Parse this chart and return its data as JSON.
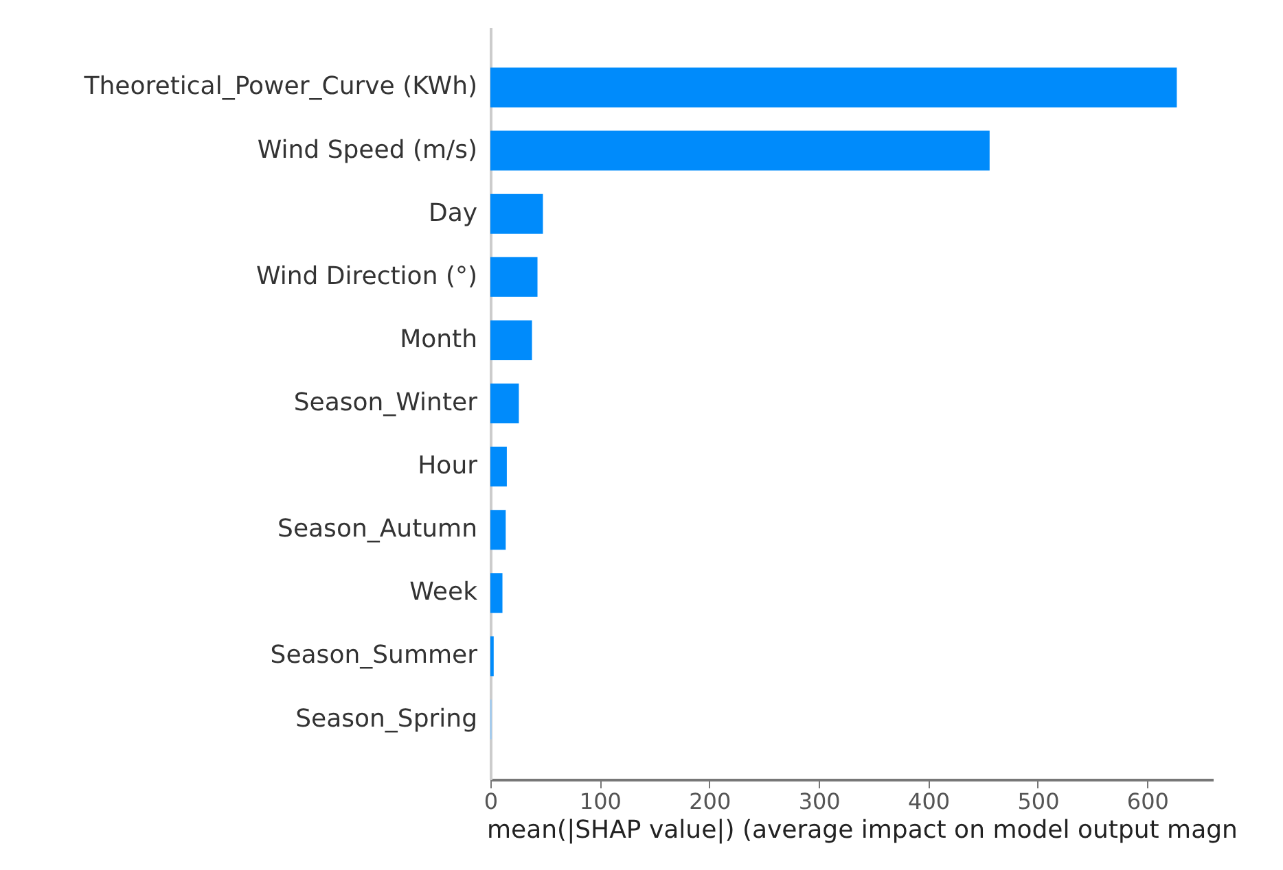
{
  "chart_data": {
    "type": "bar",
    "orientation": "horizontal",
    "xlabel": "mean(|SHAP value|) (average impact on model output magn",
    "categories": [
      "Theoretical_Power_Curve (KWh)",
      "Wind Speed (m/s)",
      "Day",
      "Wind Direction (°)",
      "Month",
      "Season_Winter",
      "Hour",
      "Season_Autumn",
      "Week",
      "Season_Summer",
      "Season_Spring"
    ],
    "values": [
      627,
      456,
      48,
      43,
      38,
      26,
      15,
      14,
      11,
      3,
      1
    ],
    "colors": [
      "#008bfb",
      "#008bfb",
      "#008bfb",
      "#008bfb",
      "#008bfb",
      "#008bfb",
      "#008bfb",
      "#008bfb",
      "#008bfb",
      "#008bfb",
      "#8fcbff"
    ],
    "xlim": [
      0,
      660
    ],
    "xticks": [
      0,
      100,
      200,
      300,
      400,
      500,
      600
    ],
    "grid": false
  }
}
